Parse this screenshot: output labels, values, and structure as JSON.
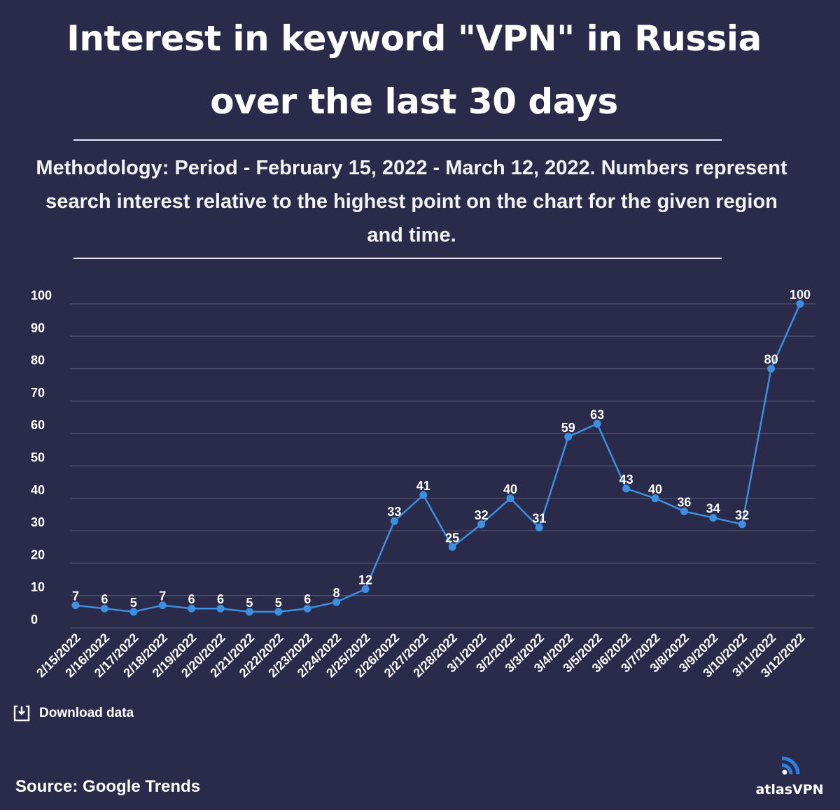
{
  "title_line1": "Interest in keyword \"VPN\" in Russia",
  "title_line2": "over the last 30 days",
  "methodology": "Methodology: Period - February 15, 2022 - March 12, 2022. Numbers represent search interest relative to the highest point on the chart for the given region and time.",
  "download_label": "Download data",
  "source": "Source: Google Trends",
  "logo_text": "atlasVPN",
  "colors": {
    "background": "#2a2a4b",
    "line": "#3d8fe0",
    "grid": "#4a4b68",
    "logo": "#2f7fe0"
  },
  "chart_data": {
    "type": "line",
    "title": "Interest in keyword \"VPN\" in Russia over the last 30 days",
    "xlabel": "",
    "ylabel": "",
    "ylim": [
      0,
      100
    ],
    "yticks": [
      0,
      10,
      20,
      30,
      40,
      50,
      60,
      70,
      80,
      90,
      100
    ],
    "grid": true,
    "categories": [
      "2/15/2022",
      "2/16/2022",
      "2/17/2022",
      "2/18/2022",
      "2/19/2022",
      "2/20/2022",
      "2/21/2022",
      "2/22/2022",
      "2/23/2022",
      "2/24/2022",
      "2/25/2022",
      "2/26/2022",
      "2/27/2022",
      "2/28/2022",
      "3/1/2022",
      "3/2/2022",
      "3/3/2022",
      "3/4/2022",
      "3/5/2022",
      "3/6/2022",
      "3/7/2022",
      "3/8/2022",
      "3/9/2022",
      "3/10/2022",
      "3/11/2022",
      "3/12/2022"
    ],
    "series": [
      {
        "name": "VPN",
        "values": [
          7,
          6,
          5,
          7,
          6,
          6,
          5,
          5,
          6,
          8,
          12,
          33,
          41,
          25,
          32,
          40,
          31,
          59,
          63,
          43,
          40,
          36,
          34,
          32,
          80,
          100
        ]
      }
    ]
  }
}
